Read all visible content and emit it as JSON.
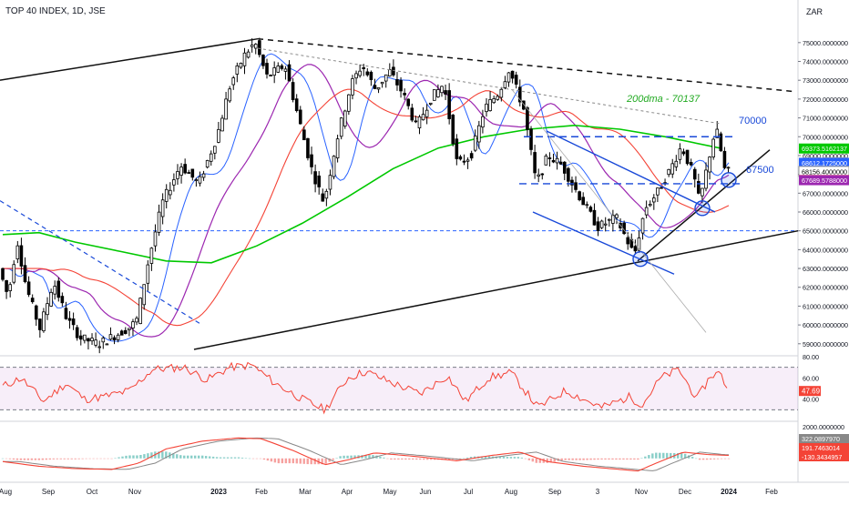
{
  "header": {
    "title": "TOP 40 INDEX, 1D, JSE",
    "currency": "ZAR"
  },
  "colors": {
    "up": "#26a69a",
    "down": "#ef5350",
    "candle": "#000000",
    "sma_fast": "#2962ff",
    "sma_mid": "#9c27b0",
    "sma_slow": "#f44336",
    "sma_200": "#00c800",
    "rsi": "#f44336",
    "macd": "#f44336",
    "signal": "#888888",
    "drawing_blue": "#1848d8",
    "trend_black": "#111111"
  },
  "chart_data": [
    {
      "type": "candlestick",
      "title": "TOP 40 INDEX, 1D, JSE",
      "x_ticks": [
        "Aug",
        "Sep",
        "Oct",
        "Nov",
        "2023",
        "Feb",
        "Mar",
        "Apr",
        "May",
        "Jun",
        "Jul",
        "Aug",
        "Sep",
        "3",
        "Nov",
        "Dec",
        "2024",
        "Feb"
      ],
      "y_ticks": [
        "75000.0000000",
        "74000.0000000",
        "73000.0000000",
        "72000.0000000",
        "71000.0000000",
        "70000.0000000",
        "69000.0000000",
        "68000.0000000",
        "67000.0000000",
        "66000.0000000",
        "65000.0000000",
        "64000.0000000",
        "63000.0000000",
        "62000.0000000",
        "61000.0000000",
        "60000.0000000",
        "59000.0000000"
      ],
      "ylim": [
        58700,
        76200
      ],
      "price_series": [
        {
          "t": 0,
          "v": 63000
        },
        {
          "t": 10,
          "v": 61500
        },
        {
          "t": 20,
          "v": 64500
        },
        {
          "t": 30,
          "v": 62000
        },
        {
          "t": 45,
          "v": 59800
        },
        {
          "t": 60,
          "v": 62300
        },
        {
          "t": 75,
          "v": 60300
        },
        {
          "t": 90,
          "v": 59300
        },
        {
          "t": 110,
          "v": 59000
        },
        {
          "t": 130,
          "v": 59500
        },
        {
          "t": 145,
          "v": 59900
        },
        {
          "t": 152,
          "v": 60300
        },
        {
          "t": 165,
          "v": 63500
        },
        {
          "t": 180,
          "v": 66500
        },
        {
          "t": 200,
          "v": 68500
        },
        {
          "t": 220,
          "v": 67500
        },
        {
          "t": 240,
          "v": 70000
        },
        {
          "t": 255,
          "v": 72800
        },
        {
          "t": 270,
          "v": 74300
        },
        {
          "t": 282,
          "v": 75000
        },
        {
          "t": 295,
          "v": 73200
        },
        {
          "t": 315,
          "v": 73800
        },
        {
          "t": 330,
          "v": 71000
        },
        {
          "t": 345,
          "v": 68200
        },
        {
          "t": 358,
          "v": 66500
        },
        {
          "t": 372,
          "v": 69800
        },
        {
          "t": 388,
          "v": 72800
        },
        {
          "t": 400,
          "v": 73800
        },
        {
          "t": 415,
          "v": 72500
        },
        {
          "t": 430,
          "v": 73500
        },
        {
          "t": 445,
          "v": 72300
        },
        {
          "t": 460,
          "v": 70500
        },
        {
          "t": 475,
          "v": 72000
        },
        {
          "t": 490,
          "v": 72800
        },
        {
          "t": 505,
          "v": 68500
        },
        {
          "t": 520,
          "v": 69000
        },
        {
          "t": 535,
          "v": 71500
        },
        {
          "t": 550,
          "v": 72300
        },
        {
          "t": 562,
          "v": 73600
        },
        {
          "t": 578,
          "v": 71500
        },
        {
          "t": 592,
          "v": 67500
        },
        {
          "t": 605,
          "v": 69000
        },
        {
          "t": 620,
          "v": 68500
        },
        {
          "t": 640,
          "v": 66800
        },
        {
          "t": 660,
          "v": 65200
        },
        {
          "t": 680,
          "v": 65700
        },
        {
          "t": 700,
          "v": 63700
        },
        {
          "t": 712,
          "v": 66200
        },
        {
          "t": 725,
          "v": 67000
        },
        {
          "t": 740,
          "v": 68300
        },
        {
          "t": 752,
          "v": 69500
        },
        {
          "t": 765,
          "v": 68000
        },
        {
          "t": 772,
          "v": 66500
        },
        {
          "t": 785,
          "v": 69500
        },
        {
          "t": 790,
          "v": 70500
        },
        {
          "t": 800,
          "v": 68156
        }
      ],
      "overlays": {
        "sma_200_label": "200dma - 70137",
        "level_70000": "70000",
        "level_67500": "67500"
      },
      "price_labels": [
        {
          "label": "69373.5162137",
          "value": 69373,
          "color": "#00c800"
        },
        {
          "label": "68612.1725000",
          "value": 68612,
          "color": "#2962ff"
        },
        {
          "label": "68156.4000000",
          "value": 68156,
          "color": "#ffffff",
          "text_color": "#000000"
        },
        {
          "label": "67702.8823000",
          "value": 67703,
          "color": "#f44336"
        },
        {
          "label": "67689.5788000",
          "value": 67690,
          "color": "#9c27b0"
        }
      ]
    },
    {
      "type": "line",
      "title": "",
      "y_ticks": [
        "80.00",
        "60.00",
        "40.00"
      ],
      "ylim": [
        20,
        80
      ],
      "bands": [
        70,
        30
      ],
      "last_value": "47.69",
      "rsi_series": [
        {
          "t": 0,
          "v": 52
        },
        {
          "t": 20,
          "v": 60
        },
        {
          "t": 45,
          "v": 38
        },
        {
          "t": 70,
          "v": 55
        },
        {
          "t": 90,
          "v": 40
        },
        {
          "t": 110,
          "v": 42
        },
        {
          "t": 140,
          "v": 48
        },
        {
          "t": 165,
          "v": 68
        },
        {
          "t": 200,
          "v": 70
        },
        {
          "t": 225,
          "v": 58
        },
        {
          "t": 250,
          "v": 70
        },
        {
          "t": 275,
          "v": 72
        },
        {
          "t": 300,
          "v": 55
        },
        {
          "t": 330,
          "v": 40
        },
        {
          "t": 355,
          "v": 30
        },
        {
          "t": 380,
          "v": 60
        },
        {
          "t": 400,
          "v": 66
        },
        {
          "t": 430,
          "v": 55
        },
        {
          "t": 460,
          "v": 45
        },
        {
          "t": 490,
          "v": 62
        },
        {
          "t": 510,
          "v": 38
        },
        {
          "t": 535,
          "v": 60
        },
        {
          "t": 560,
          "v": 65
        },
        {
          "t": 590,
          "v": 32
        },
        {
          "t": 620,
          "v": 48
        },
        {
          "t": 660,
          "v": 32
        },
        {
          "t": 690,
          "v": 42
        },
        {
          "t": 705,
          "v": 35
        },
        {
          "t": 725,
          "v": 60
        },
        {
          "t": 745,
          "v": 68
        },
        {
          "t": 765,
          "v": 40
        },
        {
          "t": 780,
          "v": 62
        },
        {
          "t": 790,
          "v": 65
        },
        {
          "t": 800,
          "v": 47.69
        }
      ]
    },
    {
      "type": "line",
      "title": "",
      "y_ticks": [
        "2000.0000000",
        "0.0000000"
      ],
      "ylim": [
        -1400,
        2300
      ],
      "last_values": [
        {
          "label": "322.0897970",
          "color": "#888888"
        },
        {
          "label": "191.7463014",
          "color": "#f44336"
        },
        {
          "label": "-130.3434957",
          "color": "#f44336"
        }
      ],
      "macd_series": [
        {
          "t": 0,
          "v": -200
        },
        {
          "t": 40,
          "v": -500
        },
        {
          "t": 80,
          "v": -650
        },
        {
          "t": 120,
          "v": -700
        },
        {
          "t": 150,
          "v": -300
        },
        {
          "t": 180,
          "v": 600
        },
        {
          "t": 220,
          "v": 1100
        },
        {
          "t": 260,
          "v": 1300
        },
        {
          "t": 285,
          "v": 1250
        },
        {
          "t": 320,
          "v": 500
        },
        {
          "t": 355,
          "v": -400
        },
        {
          "t": 380,
          "v": -100
        },
        {
          "t": 410,
          "v": 350
        },
        {
          "t": 450,
          "v": 150
        },
        {
          "t": 500,
          "v": -150
        },
        {
          "t": 540,
          "v": 200
        },
        {
          "t": 570,
          "v": 400
        },
        {
          "t": 600,
          "v": -200
        },
        {
          "t": 640,
          "v": -500
        },
        {
          "t": 700,
          "v": -800
        },
        {
          "t": 720,
          "v": -300
        },
        {
          "t": 750,
          "v": 400
        },
        {
          "t": 775,
          "v": 250
        },
        {
          "t": 800,
          "v": 191
        }
      ]
    }
  ]
}
